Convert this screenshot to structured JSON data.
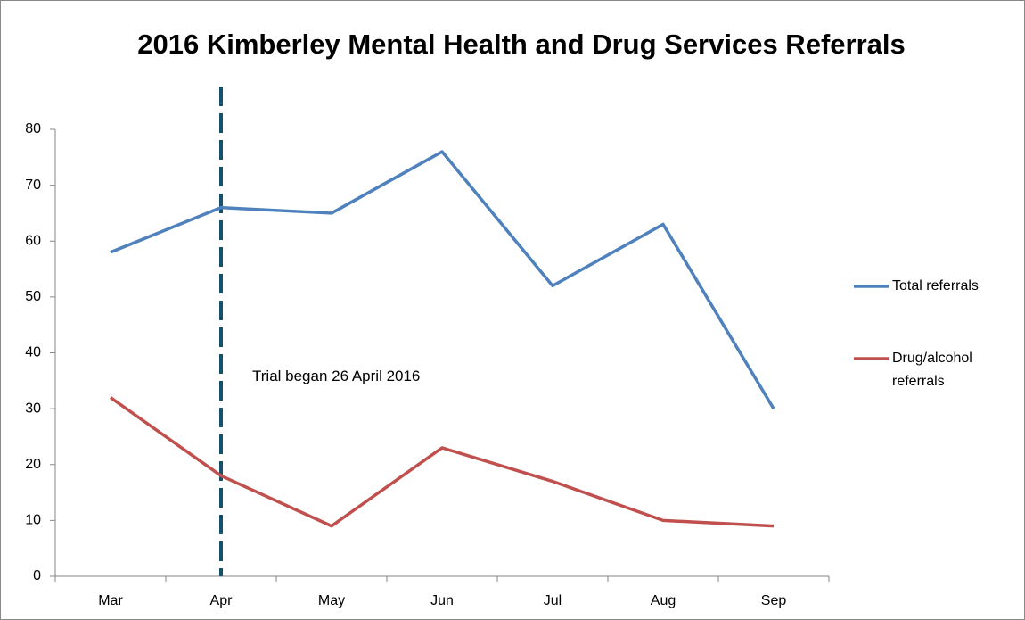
{
  "chart_data": {
    "type": "line",
    "title": "2016 Kimberley Mental Health and Drug Services Referrals",
    "categories": [
      "Mar",
      "Apr",
      "May",
      "Jun",
      "Jul",
      "Aug",
      "Sep"
    ],
    "series": [
      {
        "name": "Total referrals",
        "color": "#4f81bd",
        "values": [
          58,
          66,
          65,
          76,
          52,
          63,
          30
        ]
      },
      {
        "name": "Drug/alcohol referrals",
        "color": "#c0504d",
        "values": [
          32,
          18,
          9,
          23,
          17,
          10,
          9
        ]
      }
    ],
    "annotations": [
      "Trial began 26 April 2016"
    ],
    "ylim": [
      0,
      80
    ],
    "yticks": [
      0,
      10,
      20,
      30,
      40,
      50,
      60,
      70,
      80
    ],
    "grid": false,
    "legend": "right"
  }
}
